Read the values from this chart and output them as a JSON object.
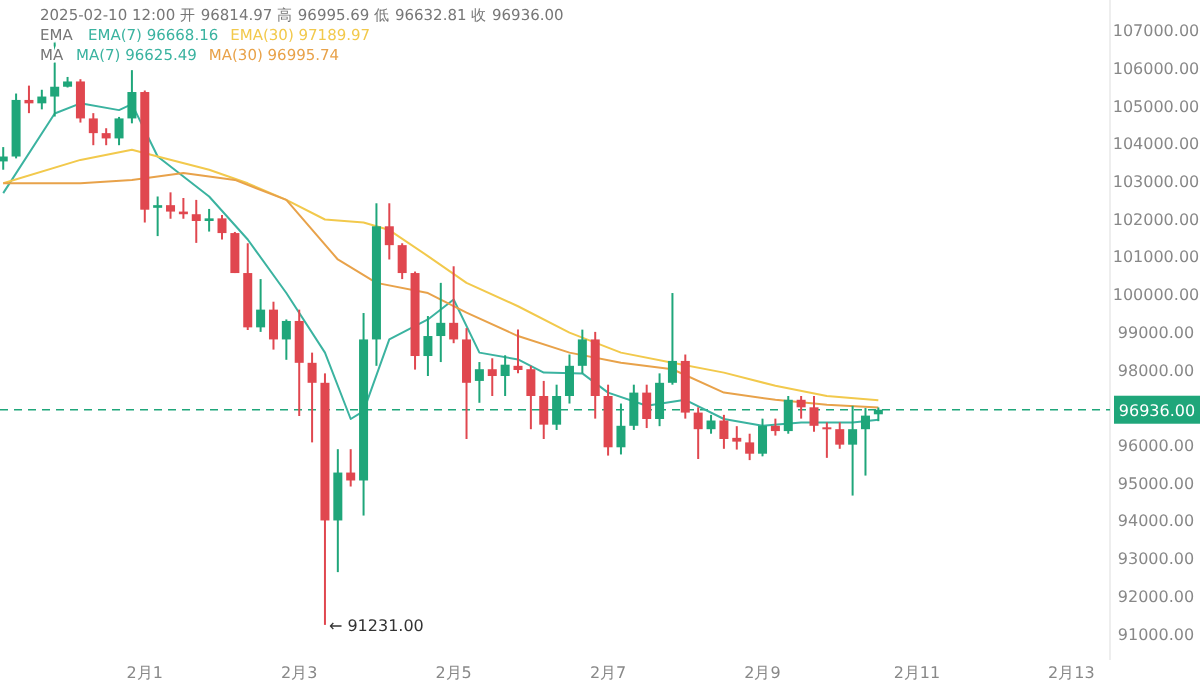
{
  "chart_data": {
    "type": "candlestick",
    "x": [
      "2025-01-30T04:00",
      "2025-01-30T08:00",
      "2025-01-30T12:00",
      "2025-01-30T16:00",
      "2025-01-30T20:00",
      "2025-01-31T00:00",
      "2025-01-31T04:00",
      "2025-01-31T08:00",
      "2025-01-31T12:00",
      "2025-01-31T16:00",
      "2025-01-31T20:00",
      "2025-02-01T00:00",
      "2025-02-01T04:00",
      "2025-02-01T08:00",
      "2025-02-01T12:00",
      "2025-02-01T16:00",
      "2025-02-01T20:00",
      "2025-02-02T00:00",
      "2025-02-02T04:00",
      "2025-02-02T08:00",
      "2025-02-02T12:00",
      "2025-02-02T16:00",
      "2025-02-02T20:00",
      "2025-02-03T00:00",
      "2025-02-03T04:00",
      "2025-02-03T08:00",
      "2025-02-03T12:00",
      "2025-02-03T16:00",
      "2025-02-03T20:00",
      "2025-02-04T00:00",
      "2025-02-04T04:00",
      "2025-02-04T08:00",
      "2025-02-04T12:00",
      "2025-02-04T16:00",
      "2025-02-04T20:00",
      "2025-02-05T00:00",
      "2025-02-05T04:00",
      "2025-02-05T08:00",
      "2025-02-05T12:00",
      "2025-02-05T16:00",
      "2025-02-05T20:00",
      "2025-02-06T00:00",
      "2025-02-06T04:00",
      "2025-02-06T08:00",
      "2025-02-06T12:00",
      "2025-02-06T16:00",
      "2025-02-06T20:00",
      "2025-02-07T00:00",
      "2025-02-07T04:00",
      "2025-02-07T08:00",
      "2025-02-07T12:00",
      "2025-02-07T16:00",
      "2025-02-07T20:00",
      "2025-02-08T00:00",
      "2025-02-08T04:00",
      "2025-02-08T08:00",
      "2025-02-08T12:00",
      "2025-02-08T16:00",
      "2025-02-08T20:00",
      "2025-02-09T00:00",
      "2025-02-09T04:00",
      "2025-02-09T08:00",
      "2025-02-09T12:00",
      "2025-02-09T16:00",
      "2025-02-09T20:00",
      "2025-02-10T00:00",
      "2025-02-10T04:00",
      "2025-02-10T08:00",
      "2025-02-10T12:00"
    ],
    "ohlc": [
      [
        103520,
        103900,
        103300,
        103650
      ],
      [
        103650,
        105320,
        103600,
        105150
      ],
      [
        105150,
        105530,
        104800,
        105060
      ],
      [
        105060,
        105420,
        104900,
        105240
      ],
      [
        105240,
        106700,
        104710,
        105500
      ],
      [
        105500,
        105760,
        105480,
        105640
      ],
      [
        105640,
        105700,
        104550,
        104660
      ],
      [
        104660,
        104800,
        103950,
        104270
      ],
      [
        104270,
        104400,
        103950,
        104130
      ],
      [
        104130,
        104700,
        103950,
        104660
      ],
      [
        104660,
        105940,
        104530,
        105360
      ],
      [
        105360,
        105400,
        101900,
        102240
      ],
      [
        102290,
        102590,
        101540,
        102360
      ],
      [
        102360,
        102700,
        102000,
        102190
      ],
      [
        102190,
        102550,
        102000,
        102120
      ],
      [
        102120,
        102500,
        101360,
        101940
      ],
      [
        101940,
        102260,
        101660,
        102010
      ],
      [
        102010,
        102100,
        101450,
        101620
      ],
      [
        101620,
        101650,
        100560,
        100560
      ],
      [
        100560,
        101350,
        99050,
        99120
      ],
      [
        99120,
        100400,
        99000,
        99590
      ],
      [
        99590,
        99800,
        98530,
        98800
      ],
      [
        98800,
        99330,
        98260,
        99290
      ],
      [
        99290,
        99590,
        96770,
        98180
      ],
      [
        98180,
        98450,
        96070,
        97650
      ],
      [
        97650,
        97900,
        91231,
        94000
      ],
      [
        94000,
        95890,
        92630,
        95270
      ],
      [
        95270,
        95890,
        94900,
        95060
      ],
      [
        95060,
        99500,
        94130,
        98800
      ],
      [
        98800,
        102410,
        98100,
        101800
      ],
      [
        101800,
        102410,
        100920,
        101300
      ],
      [
        101300,
        101350,
        100400,
        100560
      ],
      [
        100560,
        100600,
        98000,
        98360
      ],
      [
        98360,
        99420,
        97830,
        98890
      ],
      [
        98890,
        100300,
        98200,
        99240
      ],
      [
        99240,
        100740,
        98700,
        98800
      ],
      [
        98800,
        99100,
        96160,
        97650
      ],
      [
        97700,
        98200,
        97120,
        98010
      ],
      [
        98010,
        98300,
        97300,
        97830
      ],
      [
        97830,
        98380,
        97300,
        98130
      ],
      [
        98100,
        99060,
        97900,
        97990
      ],
      [
        98010,
        98100,
        96420,
        97300
      ],
      [
        97300,
        97700,
        96160,
        96540
      ],
      [
        96540,
        97600,
        96400,
        97300
      ],
      [
        97300,
        98400,
        97100,
        98100
      ],
      [
        98100,
        99060,
        97900,
        98800
      ],
      [
        98800,
        99000,
        96700,
        97300
      ],
      [
        97300,
        97600,
        95720,
        95940
      ],
      [
        95940,
        97100,
        95750,
        96510
      ],
      [
        96510,
        97600,
        96400,
        97390
      ],
      [
        97390,
        97600,
        96450,
        96690
      ],
      [
        96690,
        97900,
        96500,
        97650
      ],
      [
        97650,
        100030,
        97600,
        98230
      ],
      [
        98230,
        98400,
        96700,
        96860
      ],
      [
        96860,
        97000,
        95630,
        96420
      ],
      [
        96420,
        96800,
        96300,
        96650
      ],
      [
        96650,
        96800,
        95900,
        96160
      ],
      [
        96190,
        96500,
        95880,
        96090
      ],
      [
        96070,
        96300,
        95600,
        95770
      ],
      [
        95770,
        96700,
        95700,
        96510
      ],
      [
        96510,
        96700,
        96250,
        96370
      ],
      [
        96370,
        97300,
        96300,
        97200
      ],
      [
        97200,
        97300,
        96700,
        97000
      ],
      [
        97000,
        97300,
        96350,
        96510
      ],
      [
        96470,
        96600,
        95660,
        96420
      ],
      [
        96420,
        96600,
        95900,
        96010
      ],
      [
        96010,
        97040,
        94660,
        96420
      ],
      [
        96420,
        96980,
        95190,
        96780
      ],
      [
        96814.97,
        96995.69,
        96632.81,
        96936
      ]
    ],
    "series": [
      {
        "type": "line",
        "name": "EMA(7) 96668.16",
        "color": "#3bb3a0",
        "x": [
          "2025-01-30T04:00",
          "2025-01-30T20:00",
          "2025-01-31T04:00",
          "2025-01-31T16:00",
          "2025-01-31T20:00",
          "2025-02-01T04:00",
          "2025-02-01T20:00",
          "2025-02-02T08:00",
          "2025-02-02T20:00",
          "2025-02-03T08:00",
          "2025-02-03T16:00",
          "2025-02-03T20:00",
          "2025-02-04T04:00",
          "2025-02-04T16:00",
          "2025-02-05T00:00",
          "2025-02-05T08:00",
          "2025-02-05T20:00",
          "2025-02-06T04:00",
          "2025-02-06T16:00",
          "2025-02-07T00:00",
          "2025-02-07T12:00",
          "2025-02-08T00:00",
          "2025-02-08T12:00",
          "2025-02-09T00:00",
          "2025-02-09T12:00",
          "2025-02-10T04:00",
          "2025-02-10T12:00"
        ],
        "values": [
          102680,
          104790,
          105060,
          104880,
          105040,
          103650,
          102590,
          101450,
          100030,
          98450,
          96690,
          96900,
          98800,
          99330,
          99860,
          98450,
          98270,
          97920,
          97900,
          97390,
          97040,
          97200,
          96690,
          96510,
          96600,
          96600,
          96668.16
        ]
      },
      {
        "type": "line",
        "name": "EMA(30) 97189.97",
        "color": "#f2c94c",
        "x": [
          "2025-01-30T04:00",
          "2025-01-31T04:00",
          "2025-01-31T20:00",
          "2025-02-01T04:00",
          "2025-02-01T20:00",
          "2025-02-02T08:00",
          "2025-02-02T20:00",
          "2025-02-03T08:00",
          "2025-02-03T20:00",
          "2025-02-04T04:00",
          "2025-02-04T16:00",
          "2025-02-05T04:00",
          "2025-02-05T20:00",
          "2025-02-06T12:00",
          "2025-02-07T04:00",
          "2025-02-07T20:00",
          "2025-02-08T12:00",
          "2025-02-09T04:00",
          "2025-02-09T20:00",
          "2025-02-10T12:00"
        ],
        "values": [
          102940,
          103560,
          103830,
          103650,
          103300,
          102940,
          102500,
          101980,
          101900,
          101700,
          101010,
          100300,
          99680,
          98980,
          98450,
          98180,
          97920,
          97570,
          97300,
          97189.97
        ]
      },
      {
        "type": "line",
        "name": "MA(30) 96995.74",
        "color": "#e8a24a",
        "x": [
          "2025-01-30T04:00",
          "2025-01-31T04:00",
          "2025-01-31T20:00",
          "2025-02-01T12:00",
          "2025-02-02T04:00",
          "2025-02-02T20:00",
          "2025-02-03T12:00",
          "2025-02-04T00:00",
          "2025-02-04T16:00",
          "2025-02-05T04:00",
          "2025-02-05T20:00",
          "2025-02-06T12:00",
          "2025-02-07T04:00",
          "2025-02-07T20:00",
          "2025-02-08T12:00",
          "2025-02-09T04:00",
          "2025-02-09T20:00",
          "2025-02-10T12:00"
        ],
        "values": [
          102940,
          102940,
          103030,
          103210,
          103030,
          102500,
          100920,
          100300,
          100030,
          99510,
          98890,
          98450,
          98180,
          98010,
          97390,
          97200,
          97070,
          96995.74
        ]
      }
    ],
    "colors": [
      "#1fa67a",
      "#1fa67a",
      "#e0474f",
      "#1fa67a",
      "#1fa67a",
      "#1fa67a",
      "#e0474f",
      "#e0474f",
      "#e0474f",
      "#1fa67a",
      "#1fa67a",
      "#e0474f",
      "#1fa67a",
      "#e0474f",
      "#e0474f",
      "#e0474f",
      "#1fa67a",
      "#e0474f",
      "#e0474f",
      "#e0474f",
      "#1fa67a",
      "#e0474f",
      "#1fa67a",
      "#e0474f",
      "#e0474f",
      "#e0474f",
      "#1fa67a",
      "#e0474f",
      "#1fa67a",
      "#1fa67a",
      "#e0474f",
      "#e0474f",
      "#e0474f",
      "#1fa67a",
      "#1fa67a",
      "#e0474f",
      "#e0474f",
      "#1fa67a",
      "#e0474f",
      "#1fa67a",
      "#e0474f",
      "#e0474f",
      "#e0474f",
      "#1fa67a",
      "#1fa67a",
      "#1fa67a",
      "#e0474f",
      "#e0474f",
      "#1fa67a",
      "#1fa67a",
      "#e0474f",
      "#1fa67a",
      "#1fa67a",
      "#e0474f",
      "#e0474f",
      "#1fa67a",
      "#e0474f",
      "#e0474f",
      "#e0474f",
      "#1fa67a",
      "#e0474f",
      "#1fa67a",
      "#e0474f",
      "#e0474f",
      "#e0474f",
      "#e0474f",
      "#1fa67a",
      "#1fa67a",
      "#1fa67a"
    ],
    "xlim": [
      "2025-01-30T03:00",
      "2025-02-13T12:00"
    ],
    "xticks": [
      {
        "value": "2025-02-01",
        "label": "2月1"
      },
      {
        "value": "2025-02-03",
        "label": "2月3"
      },
      {
        "value": "2025-02-05",
        "label": "2月5"
      },
      {
        "value": "2025-02-07",
        "label": "2月7"
      },
      {
        "value": "2025-02-09",
        "label": "2月9"
      },
      {
        "value": "2025-02-11",
        "label": "2月11"
      },
      {
        "value": "2025-02-13",
        "label": "2月13"
      }
    ],
    "ylim": [
      90300,
      107800
    ],
    "yticks": [
      {
        "value": 91000,
        "label": "91000.00"
      },
      {
        "value": 92000,
        "label": "92000.00"
      },
      {
        "value": 93000,
        "label": "93000.00"
      },
      {
        "value": 94000,
        "label": "94000.00"
      },
      {
        "value": 95000,
        "label": "95000.00"
      },
      {
        "value": 96000,
        "label": "96000.00"
      },
      {
        "value": 98000,
        "label": "98000.00"
      },
      {
        "value": 99000,
        "label": "99000.00"
      },
      {
        "value": 100000,
        "label": "100000.00"
      },
      {
        "value": 101000,
        "label": "101000.00"
      },
      {
        "value": 102000,
        "label": "102000.00"
      },
      {
        "value": 103000,
        "label": "103000.00"
      },
      {
        "value": 104000,
        "label": "104000.00"
      },
      {
        "value": 105000,
        "label": "105000.00"
      },
      {
        "value": 106000,
        "label": "106000.00"
      },
      {
        "value": 107000,
        "label": "107000.00"
      }
    ],
    "ref_lines": [
      {
        "axis": "y",
        "value": 96936,
        "label": "96936.00",
        "color": "#1fa67a",
        "line_style": "dashed"
      }
    ],
    "annotations": [
      "2025-02-10 12:00 开 96814.97 高 96995.69 低 96632.81 收 96936.00",
      "EMA",
      "MA",
      "MA(7) 96625.49",
      {
        "text": "← 91231.00",
        "x": "2025-02-03T08:00",
        "y": 91231
      }
    ],
    "grid": false
  }
}
